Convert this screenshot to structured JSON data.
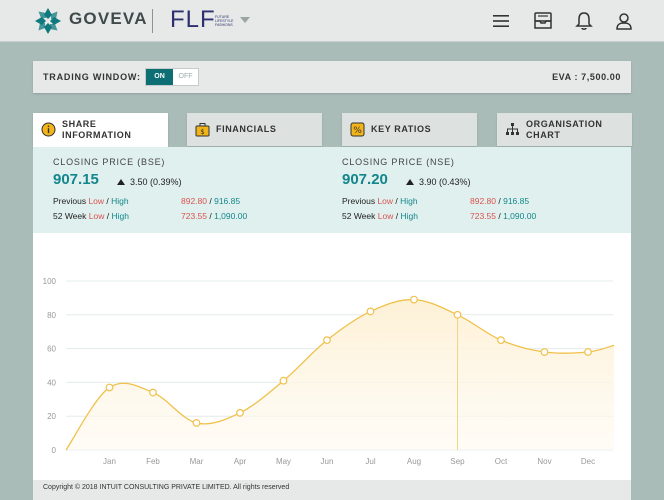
{
  "header": {
    "brand_name": "GOVEVA",
    "company_logo": "FLF",
    "company_logo_sub": "FUTURE LIFESTYLE FASHIONS",
    "icons": [
      "menu-icon",
      "inbox-icon",
      "bell-icon",
      "user-icon"
    ]
  },
  "trading": {
    "label": "TRADING WINDOW:",
    "on_label": "ON",
    "off_label": "OFF",
    "state": "ON",
    "eva_label": "EVA : 7,500.00"
  },
  "tabs": [
    {
      "label": "SHARE INFORMATION",
      "line1": "SHARE",
      "line2": "INFORMATION",
      "icon": "info-icon",
      "active": true
    },
    {
      "label": "FINANCIALS",
      "icon": "briefcase-dollar-icon",
      "active": false
    },
    {
      "label": "KEY RATIOS",
      "icon": "percent-icon",
      "active": false
    },
    {
      "label": "ORGANISATION CHART",
      "line1": "ORGANISATION",
      "line2": "CHART",
      "icon": "org-chart-icon",
      "active": false
    }
  ],
  "bse": {
    "label": "CLOSING PRICE (BSE)",
    "price": "907.15",
    "change": "3.50 (0.39%)",
    "previous_prefix": "Previous",
    "week_prefix": "52 Week",
    "low_word": "Low",
    "high_word": "High",
    "sep": " / ",
    "previous_low": "892.80",
    "previous_high": "916.85",
    "week_low": "723.55",
    "week_high": "1,090.00"
  },
  "nse": {
    "label": "CLOSING PRICE (NSE)",
    "price": "907.20",
    "change": "3.90 (0.43%)",
    "previous_prefix": "Previous",
    "week_prefix": "52 Week",
    "low_word": "Low",
    "high_word": "High",
    "sep": " / ",
    "previous_low": "892.80",
    "previous_high": "916.85",
    "week_low": "723.55",
    "week_high": "1,090.00"
  },
  "chart_data": {
    "type": "area",
    "categories": [
      "Jan",
      "Feb",
      "Mar",
      "Apr",
      "May",
      "Jun",
      "Jul",
      "Aug",
      "Sep",
      "Oct",
      "Nov",
      "Dec"
    ],
    "x": [
      0,
      1,
      2,
      3,
      4,
      5,
      6,
      7,
      8,
      9,
      10,
      11,
      12,
      12.6
    ],
    "values": [
      0,
      37,
      34,
      16,
      22,
      41,
      65,
      82,
      89,
      80,
      65,
      58,
      58,
      62
    ],
    "marker_indices": [
      1,
      2,
      3,
      4,
      5,
      6,
      7,
      8,
      9,
      10,
      11,
      12
    ],
    "yticks": [
      0,
      20,
      40,
      60,
      80,
      100
    ],
    "ylim": [
      0,
      100
    ],
    "grid": true,
    "line_color": "#f0c04a",
    "fill_color": "#fdf1d6",
    "highlight_category": "Sep"
  },
  "footer": {
    "copyright": "Copyright © 2018 INTUIT CONSULTING PRIVATE LIMITED. All rights reserved"
  },
  "colors": {
    "accent": "#13868b",
    "toggle_on": "#0d6f73",
    "low": "#d9534f",
    "high": "#13868b"
  }
}
